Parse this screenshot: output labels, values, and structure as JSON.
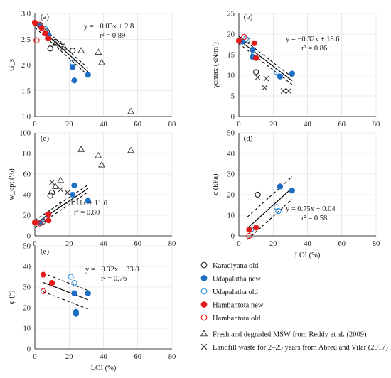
{
  "chart_data": [
    {
      "type": "scatter",
      "panel_label": "(a)",
      "xlabel": "",
      "ylabel": "G_s",
      "xlim": [
        0,
        80
      ],
      "ylim": [
        1.0,
        3.0
      ],
      "xticks": [
        "0",
        "20",
        "40",
        "60",
        "80"
      ],
      "yticks": [
        "1.0",
        "1.5",
        "2.0",
        "2.5",
        "3.0"
      ],
      "grid": true,
      "equation": "y = −0.03x + 2.8",
      "r2": "r² = 0.89",
      "fit": {
        "slope": -0.03,
        "intercept": 2.8,
        "x0": 0,
        "x1": 31,
        "band": 0.07
      },
      "series": [
        {
          "key": "karadiyana_old",
          "points": [
            [
              7,
              2.65
            ],
            [
              9,
              2.32
            ],
            [
              12,
              2.45
            ],
            [
              22,
              2.28
            ]
          ]
        },
        {
          "key": "udapalatha_new",
          "points": [
            [
              3,
              2.78
            ],
            [
              8,
              2.58
            ],
            [
              22,
              1.96
            ],
            [
              23,
              1.7
            ],
            [
              31,
              1.81
            ]
          ]
        },
        {
          "key": "udapalatha_old",
          "points": [
            [
              6,
              2.7
            ],
            [
              22,
              2.05
            ]
          ]
        },
        {
          "key": "hambantota_new",
          "points": [
            [
              0,
              2.82
            ],
            [
              4,
              2.72
            ],
            [
              6,
              2.62
            ],
            [
              8,
              2.52
            ]
          ]
        },
        {
          "key": "hambantota_old",
          "points": [
            [
              1,
              2.48
            ],
            [
              3,
              2.78
            ]
          ]
        },
        {
          "key": "reddy",
          "points": [
            [
              12,
              2.42
            ],
            [
              15,
              2.4
            ],
            [
              17,
              2.35
            ],
            [
              27,
              2.28
            ],
            [
              37,
              2.25
            ],
            [
              39,
              2.05
            ],
            [
              56,
              1.1
            ]
          ]
        },
        {
          "key": "abreu",
          "points": []
        }
      ]
    },
    {
      "type": "scatter",
      "panel_label": "(b)",
      "xlabel": "",
      "ylabel": "γdmax (kN/m³)",
      "xlim": [
        0,
        80
      ],
      "ylim": [
        0,
        25
      ],
      "xticks": [
        "0",
        "20",
        "40",
        "60",
        "80"
      ],
      "yticks": [
        "0",
        "5",
        "10",
        "15",
        "20",
        "25"
      ],
      "grid": true,
      "equation": "y = −0.32x + 18.6",
      "r2": "r² = 0.86",
      "fit": {
        "slope": -0.32,
        "intercept": 18.6,
        "x0": 0,
        "x1": 31,
        "band": 0.9
      },
      "series": [
        {
          "key": "karadiyana_old",
          "points": [
            [
              5,
              18.5
            ],
            [
              10,
              10.8
            ]
          ]
        },
        {
          "key": "udapalatha_new",
          "points": [
            [
              2,
              18.2
            ],
            [
              8,
              14.5
            ],
            [
              8,
              16.2
            ],
            [
              24,
              9.7
            ],
            [
              31,
              10.4
            ]
          ]
        },
        {
          "key": "udapalatha_old",
          "points": [
            [
              4,
              18.8
            ],
            [
              22,
              10.8
            ]
          ]
        },
        {
          "key": "hambantota_new",
          "points": [
            [
              0,
              18.4
            ],
            [
              9,
              17.8
            ],
            [
              10,
              14.2
            ]
          ]
        },
        {
          "key": "hambantota_old",
          "points": [
            [
              3,
              19.3
            ]
          ]
        },
        {
          "key": "reddy",
          "points": []
        },
        {
          "key": "abreu",
          "points": [
            [
              11,
              9.5
            ],
            [
              15,
              7
            ],
            [
              16,
              9.2
            ],
            [
              26,
              6.2
            ],
            [
              29,
              6.2
            ]
          ]
        }
      ]
    },
    {
      "type": "scatter",
      "panel_label": "(c)",
      "xlabel": "",
      "ylabel": "w_opt (%)",
      "xlim": [
        0,
        80
      ],
      "ylim": [
        0,
        100
      ],
      "xticks": [
        "0",
        "20",
        "40",
        "60",
        "80"
      ],
      "yticks": [
        "0",
        "20",
        "40",
        "60",
        "80",
        "100"
      ],
      "grid": true,
      "equation": "y = 1.11x + 11.6",
      "r2": "r² = 0.80",
      "fit": {
        "slope": 1.11,
        "intercept": 11.6,
        "x0": 0,
        "x1": 31,
        "band": 3.5
      },
      "series": [
        {
          "key": "karadiyana_old",
          "points": [
            [
              5,
              14
            ],
            [
              9,
              39
            ],
            [
              10,
              42
            ]
          ]
        },
        {
          "key": "udapalatha_new",
          "points": [
            [
              3,
              13
            ],
            [
              22,
              40
            ],
            [
              23,
              49
            ],
            [
              31,
              34
            ]
          ]
        },
        {
          "key": "udapalatha_old",
          "points": [
            [
              6,
              16
            ],
            [
              22,
              40
            ]
          ]
        },
        {
          "key": "hambantota_new",
          "points": [
            [
              0,
              13
            ],
            [
              8,
              21
            ],
            [
              8,
              15
            ]
          ]
        },
        {
          "key": "hambantota_old",
          "points": [
            [
              1,
              13
            ],
            [
              3,
              12
            ]
          ]
        },
        {
          "key": "reddy",
          "points": [
            [
              12,
              48
            ],
            [
              15,
              54
            ],
            [
              27,
              84
            ],
            [
              37,
              78
            ],
            [
              39,
              69
            ],
            [
              56,
              83
            ]
          ]
        },
        {
          "key": "abreu",
          "points": [
            [
              10,
              52
            ],
            [
              15,
              45
            ],
            [
              19,
              42
            ]
          ]
        }
      ]
    },
    {
      "type": "scatter",
      "panel_label": "(d)",
      "xlabel": "LOI (%)",
      "ylabel": "c (kPa)",
      "xlim": [
        0,
        80
      ],
      "ylim": [
        0,
        50
      ],
      "xticks": [
        "0",
        "20",
        "40",
        "60",
        "80"
      ],
      "yticks": [
        "0",
        "10",
        "20",
        "30",
        "40",
        "50"
      ],
      "grid": true,
      "equation": "y = 0.75x − 0.04",
      "r2": "r² = 0.58",
      "fit": {
        "slope": 0.75,
        "intercept": -0.04,
        "x0": 5,
        "x1": 31,
        "band": 5.5
      },
      "series": [
        {
          "key": "karadiyana_old",
          "points": [
            [
              11,
              20
            ]
          ]
        },
        {
          "key": "udapalatha_new",
          "points": [
            [
              24,
              24
            ],
            [
              31,
              22
            ]
          ]
        },
        {
          "key": "udapalatha_old",
          "points": [
            [
              22,
              14
            ],
            [
              23,
              12
            ],
            [
              7,
              3
            ]
          ]
        },
        {
          "key": "hambantota_new",
          "points": [
            [
              6,
              3
            ],
            [
              10,
              4
            ]
          ]
        },
        {
          "key": "hambantota_old",
          "points": [
            [
              6,
              0
            ]
          ]
        },
        {
          "key": "reddy",
          "points": []
        },
        {
          "key": "abreu",
          "points": []
        }
      ]
    },
    {
      "type": "scatter",
      "panel_label": "(e)",
      "xlabel": "LOI (%)",
      "ylabel": "φ (°)",
      "xlim": [
        0,
        80
      ],
      "ylim": [
        0,
        50
      ],
      "xticks": [
        "0",
        "20",
        "40",
        "60",
        "80"
      ],
      "yticks": [
        "0",
        "10",
        "20",
        "30",
        "40",
        "50"
      ],
      "grid": true,
      "equation": "y = −0.32x + 33.8",
      "r2": "r² = 0.76",
      "fit": {
        "slope": -0.32,
        "intercept": 33.8,
        "x0": 5,
        "x1": 31,
        "band": 4.5
      },
      "series": [
        {
          "key": "karadiyana_old",
          "points": []
        },
        {
          "key": "udapalatha_new",
          "points": [
            [
              23,
              27
            ],
            [
              24,
              18
            ],
            [
              24,
              17
            ],
            [
              31,
              27
            ]
          ]
        },
        {
          "key": "udapalatha_old",
          "points": [
            [
              21,
              35
            ],
            [
              23,
              32
            ]
          ]
        },
        {
          "key": "hambantota_new",
          "points": [
            [
              5,
              36
            ],
            [
              10,
              32
            ]
          ]
        },
        {
          "key": "hambantota_old",
          "points": [
            [
              5,
              28
            ]
          ]
        },
        {
          "key": "reddy",
          "points": []
        },
        {
          "key": "abreu",
          "points": []
        }
      ]
    }
  ],
  "legend": [
    {
      "key": "karadiyana_old",
      "label": "Karadiyana old",
      "marker": "circle",
      "fill": "none",
      "stroke": "#1a1a1a"
    },
    {
      "key": "udapalatha_new",
      "label": "Udapalatha new",
      "marker": "circle",
      "fill": "#1f6fc4",
      "stroke": "#1f6fc4"
    },
    {
      "key": "udapalatha_old",
      "label": "Udapalatha old",
      "marker": "circle",
      "fill": "none",
      "stroke": "#2f8fe0"
    },
    {
      "key": "hambantota_new",
      "label": "Hambantota new",
      "marker": "circle",
      "fill": "#e31b1b",
      "stroke": "#e31b1b"
    },
    {
      "key": "hambantota_old",
      "label": "Hambantota old",
      "marker": "circle",
      "fill": "none",
      "stroke": "#e31b1b"
    },
    {
      "key": "reddy",
      "label": "Fresh and degraded MSW from Reddy et al. (2009)",
      "marker": "triangle",
      "fill": "none",
      "stroke": "#333333"
    },
    {
      "key": "abreu",
      "label": "Landfill waste for 2–25 years from Abreu and Vilar (2017)",
      "marker": "cross",
      "fill": "none",
      "stroke": "#333333"
    }
  ]
}
